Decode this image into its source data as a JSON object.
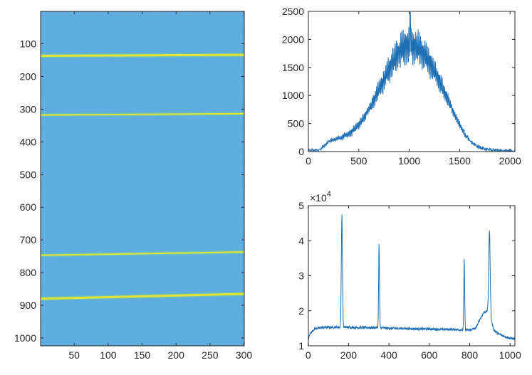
{
  "colors": {
    "background": "#ffffff",
    "axis": "#262626",
    "line": "#1f6fb4",
    "image_base": "#2f7fd0",
    "image_line": "#e4e33a"
  },
  "chart_data": [
    {
      "type": "heatmap",
      "title": "",
      "xlabel": "",
      "ylabel": "",
      "xlim": [
        0.5,
        300.5
      ],
      "ylim": [
        1,
        1024
      ],
      "y_reversed": true,
      "xticks": [
        50,
        100,
        150,
        200,
        250,
        300
      ],
      "yticks": [
        100,
        200,
        300,
        400,
        500,
        600,
        700,
        800,
        900,
        1000
      ],
      "colormap": "parula",
      "bright_traces": [
        {
          "y_start": 137,
          "y_end": 134,
          "intensity": "high"
        },
        {
          "y_start": 318,
          "y_end": 314,
          "intensity": "medium"
        },
        {
          "y_start": 747,
          "y_end": 737,
          "intensity": "medium"
        },
        {
          "y_start": 880,
          "y_end": 865,
          "intensity": "high"
        }
      ]
    },
    {
      "type": "line",
      "title": "",
      "xlabel": "",
      "ylabel": "",
      "xlim": [
        0,
        2048
      ],
      "ylim": [
        0,
        2500
      ],
      "xticks": [
        0,
        500,
        1000,
        1500,
        2000
      ],
      "yticks": [
        0,
        500,
        1000,
        1500,
        2000,
        2500
      ],
      "envelope": {
        "x": [
          0,
          100,
          150,
          200,
          250,
          300,
          350,
          400,
          450,
          500,
          550,
          600,
          650,
          700,
          750,
          800,
          850,
          900,
          950,
          1000,
          1050,
          1100,
          1150,
          1200,
          1250,
          1300,
          1350,
          1400,
          1450,
          1500,
          1550,
          1600,
          1650,
          1700,
          1750,
          1800,
          1850,
          1900,
          1950,
          2000,
          2048
        ],
        "y": [
          20,
          30,
          90,
          170,
          210,
          240,
          270,
          320,
          380,
          480,
          600,
          750,
          920,
          1100,
          1300,
          1480,
          1640,
          1780,
          1870,
          1900,
          1880,
          1820,
          1720,
          1600,
          1440,
          1260,
          1060,
          860,
          660,
          470,
          320,
          200,
          120,
          70,
          50,
          30,
          25,
          20,
          15,
          15,
          10
        ]
      },
      "oscillation_amplitude": {
        "x": [
          0,
          600,
          800,
          1000,
          1200,
          1400,
          1600,
          2048
        ],
        "y": [
          10,
          100,
          300,
          400,
          300,
          120,
          40,
          10
        ]
      },
      "peak": {
        "x": 1010,
        "y": 2480
      }
    },
    {
      "type": "line",
      "title": "",
      "xlabel": "",
      "ylabel": "",
      "xlim": [
        1,
        1024
      ],
      "ylim": [
        10000,
        50000
      ],
      "y_exponent_label": "×10",
      "y_exponent_power": "4",
      "xticks": [
        0,
        200,
        400,
        600,
        800,
        1000
      ],
      "ytick_values": [
        10000,
        20000,
        30000,
        40000,
        50000
      ],
      "ytick_labels": [
        "1",
        "2",
        "3",
        "4",
        "5"
      ],
      "baseline": {
        "x": [
          1,
          10,
          30,
          60,
          100,
          150,
          200,
          250,
          300,
          350,
          400,
          450,
          500,
          550,
          600,
          650,
          700,
          750,
          800,
          830,
          850,
          870,
          890,
          905,
          920,
          940,
          960,
          980,
          1000,
          1024
        ],
        "y": [
          12000,
          13500,
          14800,
          15200,
          15300,
          15300,
          15300,
          15200,
          15200,
          15200,
          15000,
          15000,
          14900,
          14800,
          14800,
          14700,
          14700,
          14600,
          14500,
          15000,
          17500,
          19500,
          20000,
          17500,
          14500,
          13500,
          13000,
          12500,
          12200,
          12000
        ]
      },
      "peaks": [
        {
          "x": 167,
          "y": 47500,
          "width": 4
        },
        {
          "x": 351,
          "y": 38800,
          "width": 3
        },
        {
          "x": 773,
          "y": 34500,
          "width": 3
        },
        {
          "x": 898,
          "y": 42800,
          "width": 5
        }
      ]
    }
  ]
}
